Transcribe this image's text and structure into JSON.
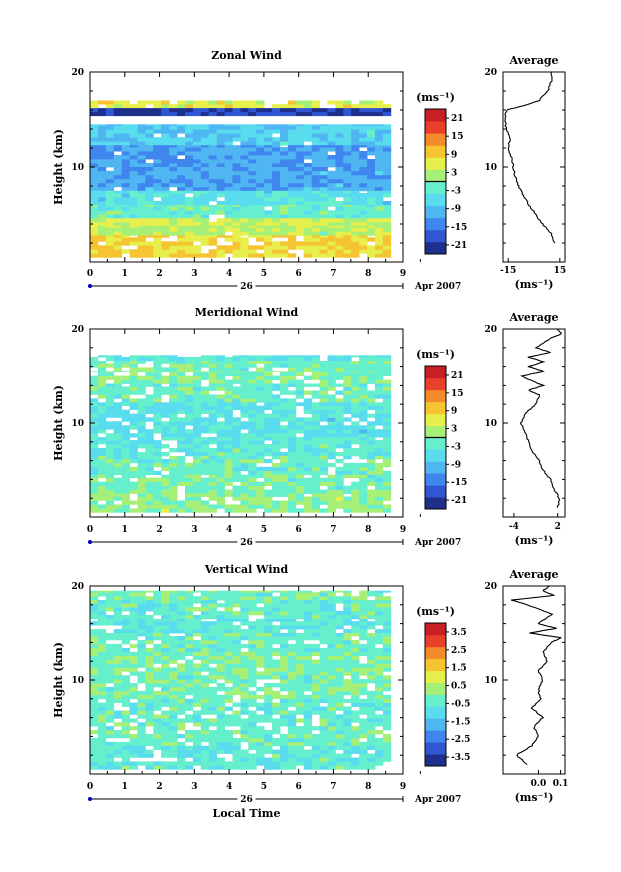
{
  "chart_data": [
    {
      "type": "heatmap",
      "title": "Zonal Wind",
      "ylabel": "Height (km)",
      "xlabel": "",
      "xlim": [
        0,
        9
      ],
      "ylim": [
        0,
        20
      ],
      "x_ticks": [
        "0",
        "1",
        "2",
        "3",
        "4",
        "5",
        "6",
        "7",
        "8",
        "9"
      ],
      "y_ticks": [
        "20",
        "10"
      ],
      "date_day": "26",
      "date_month": "Apr 2007",
      "colorbar": {
        "unit": "(ms⁻¹)",
        "ticks": [
          "21",
          "15",
          "9",
          "3",
          "-3",
          "-9",
          "-15",
          "-21"
        ],
        "min": -24,
        "max": 24,
        "zero_line": 0
      },
      "profile": {
        "title": "Average",
        "xlim": [
          -18,
          18
        ],
        "x_ticks": [
          "-15",
          "15"
        ],
        "unit": "(ms⁻¹)",
        "heights": [
          2,
          3,
          4,
          5,
          6,
          7,
          8,
          9,
          10,
          11,
          12,
          13,
          14,
          15,
          16,
          16.5,
          17,
          18,
          19,
          20
        ],
        "values": [
          12,
          10,
          5,
          1,
          -3,
          -6,
          -9,
          -11,
          -12,
          -13,
          -15,
          -14,
          -16,
          -17,
          -16,
          -5,
          3,
          8,
          10,
          10
        ]
      },
      "layers": [
        {
          "y0": 16.2,
          "y1": 17.0,
          "v": 6
        },
        {
          "y0": 15.4,
          "y1": 16.2,
          "v": -20
        },
        {
          "y0": 12.3,
          "y1": 14.5,
          "v": -7
        },
        {
          "y0": 10.0,
          "y1": 12.3,
          "v": -12
        },
        {
          "y0": 7.5,
          "y1": 10.0,
          "v": -11
        },
        {
          "y0": 6.0,
          "y1": 7.5,
          "v": -5
        },
        {
          "y0": 4.6,
          "y1": 6.0,
          "v": -2
        },
        {
          "y0": 3.8,
          "y1": 4.6,
          "v": 5
        },
        {
          "y0": 2.8,
          "y1": 3.8,
          "v": 3
        },
        {
          "y0": 0.5,
          "y1": 2.8,
          "v": 8
        }
      ]
    },
    {
      "type": "heatmap",
      "title": "Meridional Wind",
      "ylabel": "Height (km)",
      "xlabel": "",
      "xlim": [
        0,
        9
      ],
      "ylim": [
        0,
        20
      ],
      "x_ticks": [
        "0",
        "1",
        "2",
        "3",
        "4",
        "5",
        "6",
        "7",
        "8",
        "9"
      ],
      "y_ticks": [
        "20",
        "10"
      ],
      "date_day": "26",
      "date_month": "Apr 2007",
      "colorbar": {
        "unit": "(ms⁻¹)",
        "ticks": [
          "21",
          "15",
          "9",
          "3",
          "-3",
          "-9",
          "-15",
          "-21"
        ],
        "min": -24,
        "max": 24,
        "zero_line": 0
      },
      "profile": {
        "title": "Average",
        "xlim": [
          -5.5,
          3
        ],
        "x_ticks": [
          "-4",
          "2"
        ],
        "unit": "(ms⁻¹)",
        "heights": [
          1,
          2,
          3,
          4,
          5,
          6,
          7,
          8,
          9,
          10,
          11,
          12,
          13,
          13.5,
          14,
          14.5,
          15,
          15.5,
          16,
          16.5,
          17,
          17.5,
          18,
          19,
          19.5,
          20
        ],
        "values": [
          2,
          2.2,
          1.5,
          1,
          0,
          -0.5,
          -1.5,
          -2,
          -2.5,
          -3,
          -2.5,
          -1,
          -0.5,
          -2,
          0,
          -1.5,
          -3,
          0,
          -2,
          0,
          -2,
          1,
          -1,
          1,
          2.5,
          2
        ]
      },
      "layers": [
        {
          "y0": 16.6,
          "y1": 17.2,
          "v": -5
        },
        {
          "y0": 15.5,
          "y1": 16.6,
          "v": -1
        },
        {
          "y0": 14.2,
          "y1": 15.5,
          "v": 0
        },
        {
          "y0": 12.2,
          "y1": 14.2,
          "v": -2
        },
        {
          "y0": 11.0,
          "y1": 12.2,
          "v": -4
        },
        {
          "y0": 8.5,
          "y1": 11.0,
          "v": -5
        },
        {
          "y0": 6.5,
          "y1": 8.5,
          "v": -3
        },
        {
          "y0": 4.5,
          "y1": 6.5,
          "v": -2
        },
        {
          "y0": 2.5,
          "y1": 4.5,
          "v": -1
        },
        {
          "y0": 0.5,
          "y1": 2.5,
          "v": 1
        }
      ]
    },
    {
      "type": "heatmap",
      "title": "Vertical Wind",
      "ylabel": "Height (km)",
      "xlabel": "Local Time",
      "xlim": [
        0,
        9
      ],
      "ylim": [
        0,
        20
      ],
      "x_ticks": [
        "0",
        "1",
        "2",
        "3",
        "4",
        "5",
        "6",
        "7",
        "8",
        "9"
      ],
      "y_ticks": [
        "20",
        "10"
      ],
      "date_day": "26",
      "date_month": "Apr 2007",
      "colorbar": {
        "unit": "(ms⁻¹)",
        "ticks": [
          "3.5",
          "2.5",
          "1.5",
          "0.5",
          "-0.5",
          "-1.5",
          "-2.5",
          "-3.5"
        ],
        "min": -4,
        "max": 4,
        "zero_line": null
      },
      "profile": {
        "title": "Average",
        "xlim": [
          -0.16,
          0.12
        ],
        "x_ticks": [
          "0.0",
          "0.1"
        ],
        "unit": "(ms⁻¹)",
        "heights": [
          1,
          2,
          3,
          4,
          5,
          6,
          7,
          8,
          9,
          10,
          11,
          12,
          13,
          14,
          14.5,
          15,
          15.5,
          16,
          17,
          18,
          18.5,
          19,
          19.5,
          20
        ],
        "values": [
          -0.05,
          -0.1,
          -0.03,
          0.0,
          -0.02,
          0.02,
          -0.03,
          0.01,
          0.0,
          0.02,
          0.0,
          0.04,
          0.02,
          0.06,
          0.1,
          -0.04,
          0.08,
          0.0,
          0.06,
          -0.05,
          -0.12,
          0.07,
          0.02,
          0.05
        ]
      },
      "layers": [
        {
          "y0": 18.5,
          "y1": 19.5,
          "v": -0.2
        },
        {
          "y0": 16.5,
          "y1": 18.5,
          "v": -0.4
        },
        {
          "y0": 15.0,
          "y1": 16.5,
          "v": -0.6
        },
        {
          "y0": 13.0,
          "y1": 15.0,
          "v": -0.3
        },
        {
          "y0": 10.5,
          "y1": 13.0,
          "v": -0.1
        },
        {
          "y0": 8.0,
          "y1": 10.5,
          "v": -0.2
        },
        {
          "y0": 5.5,
          "y1": 8.0,
          "v": -0.4
        },
        {
          "y0": 3.0,
          "y1": 5.5,
          "v": -0.3
        },
        {
          "y0": 0.5,
          "y1": 3.0,
          "v": -0.5
        }
      ]
    }
  ]
}
